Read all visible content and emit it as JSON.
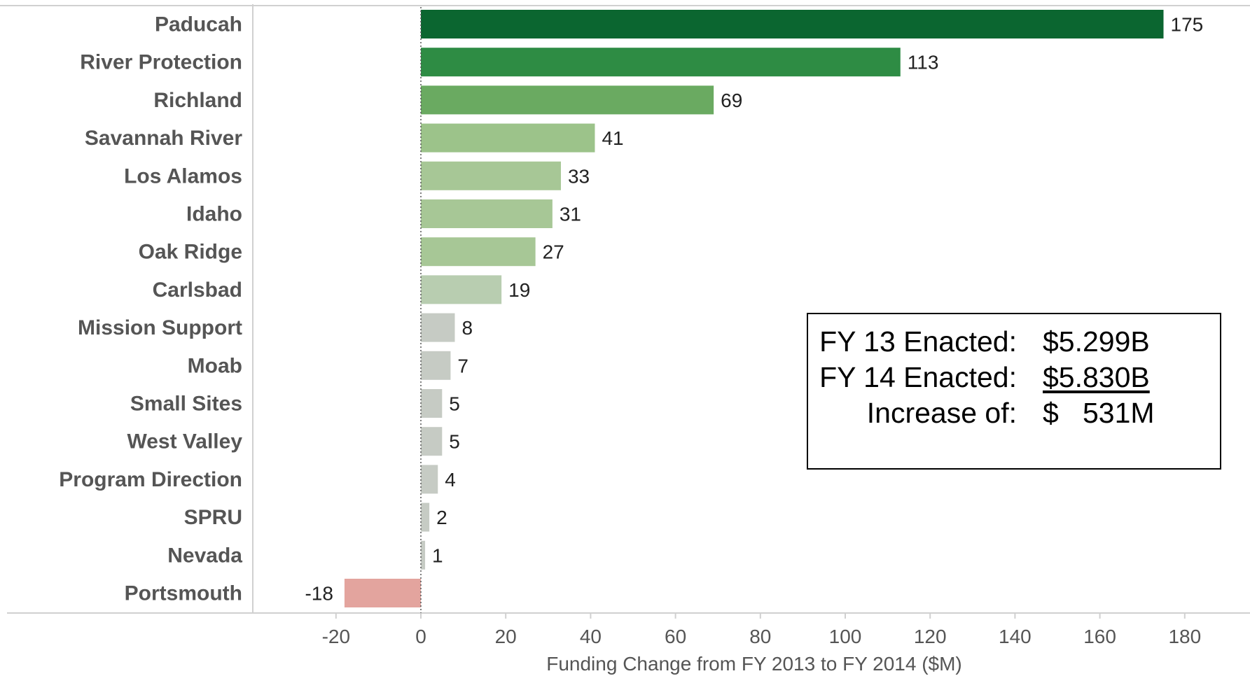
{
  "chart_data": {
    "type": "bar",
    "orientation": "horizontal",
    "categories": [
      "Paducah",
      "River Protection",
      "Richland",
      "Savannah River",
      "Los Alamos",
      "Idaho",
      "Oak Ridge",
      "Carlsbad",
      "Mission Support",
      "Moab",
      "Small Sites",
      "West Valley",
      "Program Direction",
      "SPRU",
      "Nevada",
      "Portsmouth"
    ],
    "values": [
      175,
      113,
      69,
      41,
      33,
      31,
      27,
      19,
      8,
      7,
      5,
      5,
      4,
      2,
      1,
      -18
    ],
    "value_labels": [
      "175",
      "113",
      "69",
      "41",
      "33",
      "31",
      "27",
      "19",
      "8",
      "7",
      "5",
      "5",
      "4",
      "2",
      "1",
      "-18"
    ],
    "bar_colors": [
      "#0b6630",
      "#2e8c44",
      "#6aaa61",
      "#9cc38a",
      "#a7c796",
      "#a7c796",
      "#a7c796",
      "#b8cdb0",
      "#c6cbc4",
      "#c6cbc4",
      "#c6cbc4",
      "#c6cbc4",
      "#c6cbc4",
      "#c6cbc4",
      "#c6cbc4",
      "#e3a49e"
    ],
    "xlabel": "Funding Change from FY 2013 to FY 2014 ($M)",
    "ylabel": "",
    "xlim": [
      -20,
      180
    ],
    "xticks": [
      -20,
      0,
      20,
      40,
      60,
      80,
      100,
      120,
      140,
      160,
      180
    ],
    "grid": false,
    "zero_line": "dotted"
  },
  "summary": {
    "row1_label": "FY 13 Enacted:",
    "row1_value": "$5.299B",
    "row2_label": "FY 14 Enacted:",
    "row2_value": "$5.830B",
    "row3_label": "Increase of:",
    "row3_value": "$   531M"
  },
  "colors": {
    "axis_line": "#d0d0d0",
    "zero_line": "#555555",
    "text": "#555555"
  }
}
